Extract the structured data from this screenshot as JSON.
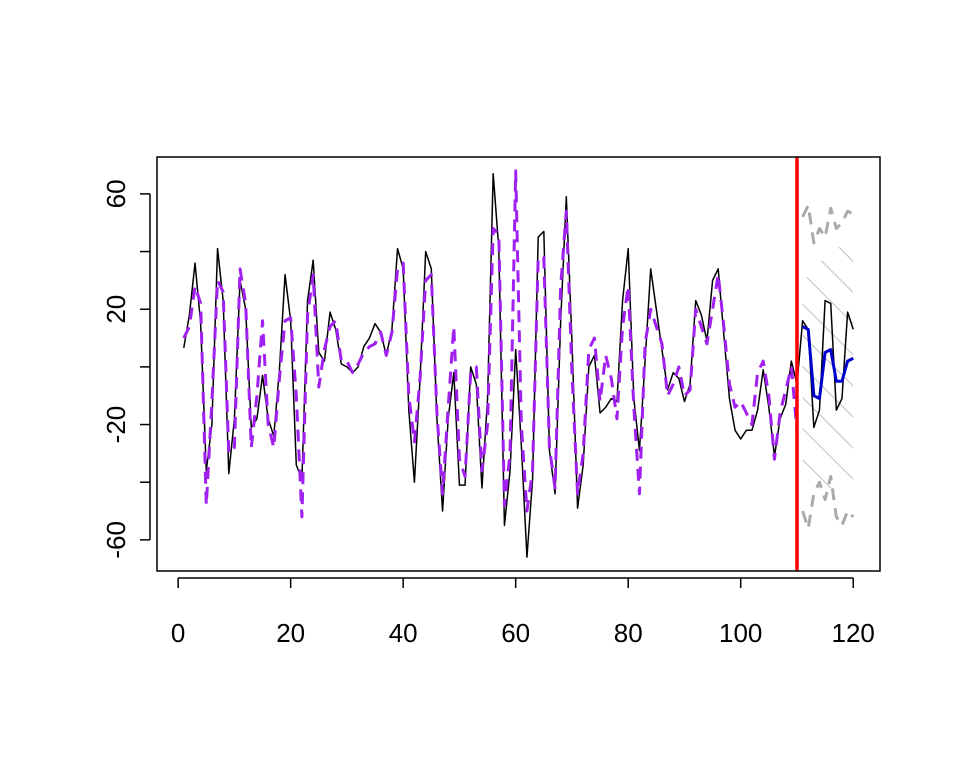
{
  "chart_data": {
    "type": "line",
    "xlim": [
      -3.76,
      124.76
    ],
    "ylim": [
      -70.8,
      72.8
    ],
    "xticks": [
      0,
      20,
      40,
      60,
      80,
      100,
      120
    ],
    "yticks": [
      -60,
      -20,
      20,
      60
    ],
    "yminor": [
      -40,
      0,
      40
    ],
    "vline": {
      "x": 110,
      "color": "#ff0000"
    },
    "band": {
      "color": "#aaaaaa",
      "x": [
        111,
        112,
        113,
        114,
        115,
        116,
        117,
        118,
        119,
        120
      ],
      "upper": [
        28,
        32,
        34,
        36,
        38,
        40,
        41,
        42,
        43,
        44
      ],
      "lower": [
        -40,
        -41,
        -42,
        -42,
        -42,
        -42,
        -42,
        -42,
        -42,
        -42
      ]
    },
    "series": [
      {
        "color": "#000000",
        "dash": false,
        "width": 1.5,
        "x": [
          1,
          2,
          3,
          4,
          5,
          6,
          7,
          8,
          9,
          10,
          11,
          12,
          13,
          14,
          15,
          16,
          17,
          18,
          19,
          20,
          21,
          22,
          23,
          24,
          25,
          26,
          27,
          28,
          29,
          30,
          31,
          32,
          33,
          34,
          35,
          36,
          37,
          38,
          39,
          40,
          41,
          42,
          43,
          44,
          45,
          46,
          47,
          48,
          49,
          50,
          51,
          52,
          53,
          54,
          55,
          56,
          57,
          58,
          59,
          60,
          61,
          62,
          63,
          64,
          65,
          66,
          67,
          68,
          69,
          70,
          71,
          72,
          73,
          74,
          75,
          76,
          77,
          78,
          79,
          80,
          81,
          82,
          83,
          84,
          85,
          86,
          87,
          88,
          89,
          90,
          91,
          92,
          93,
          94,
          95,
          96,
          97,
          98,
          99,
          100,
          101,
          102,
          103,
          104,
          105,
          106,
          107,
          108,
          109,
          110,
          111,
          112,
          113,
          114,
          115,
          116,
          117,
          118,
          119,
          120
        ],
        "values": [
          6.6,
          18,
          36,
          15,
          -36,
          -20,
          41,
          23,
          -37,
          -18,
          30,
          20,
          -21,
          -18,
          -3,
          -18,
          -24,
          -1,
          32,
          16,
          -34,
          -39,
          23,
          37,
          5,
          2,
          19,
          13,
          1,
          0,
          -2,
          0,
          7,
          10,
          15,
          12,
          4,
          13,
          41,
          34,
          -15,
          -40,
          -4,
          40,
          34,
          -18,
          -50,
          -18,
          -2,
          -41,
          -41,
          0,
          -6,
          -42,
          -11,
          67,
          41,
          -55,
          -36,
          6,
          -27,
          -66,
          -39,
          45,
          47,
          -29,
          -44,
          16,
          59,
          9,
          -49,
          -34,
          0,
          4,
          -16,
          -14,
          -11,
          -12,
          23,
          41,
          -11,
          -29,
          2,
          34,
          20,
          6,
          -8,
          -2,
          -4,
          -12,
          -6,
          23,
          18,
          9,
          30,
          34,
          11,
          -11,
          -22,
          -25,
          -22,
          -22,
          -15,
          -1,
          -14,
          -31,
          -18,
          -13,
          2,
          -6,
          16,
          13,
          -21,
          -15,
          23,
          22,
          -15,
          -11,
          19,
          13
        ]
      },
      {
        "color": "#a020f0",
        "dash": true,
        "width": 3,
        "x": [
          1,
          2,
          3,
          4,
          5,
          6,
          7,
          8,
          9,
          10,
          11,
          12,
          13,
          14,
          15,
          16,
          17,
          18,
          19,
          20,
          21,
          22,
          23,
          24,
          25,
          26,
          27,
          28,
          29,
          30,
          31,
          32,
          33,
          34,
          35,
          36,
          37,
          38,
          39,
          40,
          41,
          42,
          43,
          44,
          45,
          46,
          47,
          48,
          49,
          50,
          51,
          52,
          53,
          54,
          55,
          56,
          57,
          58,
          59,
          60,
          61,
          62,
          63,
          64,
          65,
          66,
          67,
          68,
          69,
          70,
          71,
          72,
          73,
          74,
          75,
          76,
          77,
          78,
          79,
          80,
          81,
          82,
          83,
          84,
          85,
          86,
          87,
          88,
          89,
          90,
          91,
          92,
          93,
          94,
          95,
          96,
          97,
          98,
          99,
          100,
          101,
          102,
          103,
          104,
          105,
          106,
          107,
          108,
          109,
          110
        ],
        "values": [
          10,
          14,
          28,
          22,
          -48,
          -12,
          30,
          26,
          -30,
          -28,
          34,
          22,
          -28,
          -10,
          16,
          -20,
          -28,
          -4,
          16,
          17,
          -10,
          -52,
          18,
          32,
          -7,
          6,
          14,
          16,
          2,
          2,
          -2,
          1,
          5,
          7,
          8,
          12,
          4,
          12,
          34,
          36,
          -10,
          -26,
          -4,
          30,
          32,
          -16,
          -44,
          -14,
          14,
          -32,
          -38,
          -2,
          0,
          -36,
          -20,
          48,
          46,
          -48,
          -30,
          68,
          -20,
          -50,
          -36,
          38,
          38,
          -28,
          -42,
          28,
          54,
          -2,
          -44,
          -30,
          6,
          10,
          -12,
          4,
          -4,
          -18,
          14,
          28,
          -14,
          -44,
          8,
          20,
          14,
          8,
          -10,
          -6,
          0,
          -10,
          -8,
          20,
          14,
          8,
          20,
          32,
          14,
          -6,
          -14,
          -12,
          -16,
          -20,
          -2,
          2,
          -10,
          -32,
          -16,
          -8,
          0,
          -22
        ]
      },
      {
        "color": "#0000cd",
        "dash": false,
        "width": 3,
        "x": [
          111,
          112,
          113,
          114,
          115,
          116,
          117,
          118,
          119,
          120
        ],
        "values": [
          14,
          13,
          -10,
          -11,
          5,
          6,
          -5,
          -5,
          2,
          3
        ]
      },
      {
        "color": "#aaaaaa",
        "dash": true,
        "width": 3,
        "x": [
          111,
          112,
          113,
          114,
          115,
          116,
          117,
          118,
          119,
          120
        ],
        "values": [
          52,
          56,
          43,
          48,
          45,
          55,
          48,
          50,
          54,
          53
        ]
      },
      {
        "color": "#aaaaaa",
        "dash": true,
        "width": 3,
        "x": [
          111,
          112,
          113,
          114,
          115,
          116,
          117,
          118,
          119,
          120
        ],
        "values": [
          -50,
          -56,
          -44,
          -40,
          -46,
          -38,
          -52,
          -55,
          -50,
          -52
        ]
      }
    ]
  }
}
